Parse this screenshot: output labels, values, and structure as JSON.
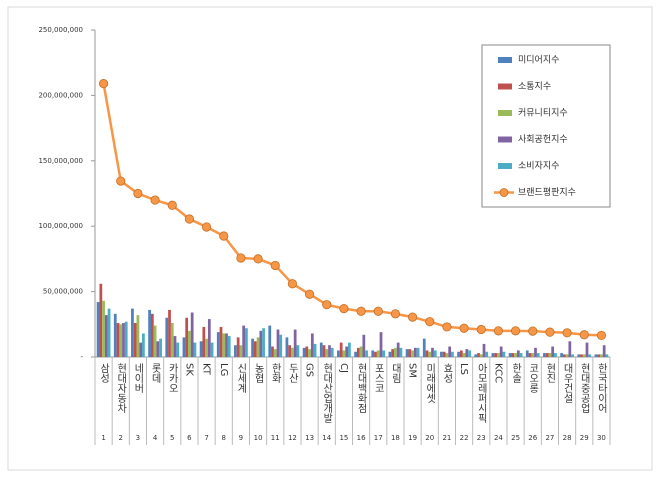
{
  "chart_data": {
    "type": "bar",
    "categories": [
      "삼성",
      "현대자동차",
      "네이버",
      "롯데",
      "카카오",
      "SK",
      "KT",
      "LG",
      "신세계",
      "농협",
      "한화",
      "두산",
      "GS",
      "현대산업개발",
      "CJ",
      "현대백화점",
      "포스코",
      "대림",
      "SM",
      "미래에셋",
      "효성",
      "LS",
      "아모레퍼시픽",
      "KCC",
      "한솔",
      "코오롱",
      "현진",
      "대우건설",
      "현대중공업",
      "한국타이어"
    ],
    "ranks": [
      1,
      2,
      3,
      4,
      5,
      6,
      7,
      8,
      9,
      10,
      11,
      12,
      13,
      14,
      15,
      16,
      17,
      18,
      19,
      20,
      21,
      22,
      23,
      24,
      25,
      26,
      27,
      28,
      29,
      30
    ],
    "series": [
      {
        "name": "미디어지수",
        "type": "bar",
        "color": "#4f81bd",
        "values": [
          42000000,
          33000000,
          37000000,
          36000000,
          30000000,
          15000000,
          12000000,
          19000000,
          9000000,
          14000000,
          24000000,
          15000000,
          7000000,
          11000000,
          5000000,
          4000000,
          5000000,
          4000000,
          6000000,
          14000000,
          4000000,
          4000000,
          2000000,
          3000000,
          3000000,
          5000000,
          3000000,
          3000000,
          2000000,
          2000000
        ]
      },
      {
        "name": "소통지수",
        "type": "bar",
        "color": "#c0504d",
        "values": [
          56000000,
          26000000,
          26000000,
          33000000,
          36000000,
          30000000,
          23000000,
          23000000,
          15000000,
          12000000,
          8000000,
          9000000,
          8000000,
          9000000,
          11000000,
          7000000,
          4000000,
          6000000,
          6000000,
          5000000,
          4000000,
          5000000,
          3000000,
          3000000,
          3000000,
          3000000,
          3000000,
          2000000,
          2000000,
          2000000
        ]
      },
      {
        "name": "커뮤니티지수",
        "type": "bar",
        "color": "#9bbb59",
        "values": [
          43000000,
          25000000,
          32000000,
          24000000,
          26000000,
          20000000,
          14000000,
          18000000,
          9000000,
          15000000,
          6000000,
          7000000,
          6000000,
          6000000,
          5000000,
          8000000,
          5000000,
          7000000,
          5000000,
          4000000,
          3000000,
          3000000,
          2000000,
          3000000,
          3000000,
          3000000,
          3000000,
          2000000,
          2000000,
          2000000
        ]
      },
      {
        "name": "사회공헌지수",
        "type": "bar",
        "color": "#8064a2",
        "values": [
          32000000,
          26000000,
          11000000,
          12000000,
          16000000,
          34000000,
          29000000,
          18000000,
          24000000,
          20000000,
          21000000,
          21000000,
          18000000,
          9000000,
          8000000,
          17000000,
          19000000,
          11000000,
          7000000,
          7000000,
          8000000,
          6000000,
          10000000,
          8000000,
          5000000,
          7000000,
          8000000,
          12000000,
          11000000,
          9000000
        ]
      },
      {
        "name": "소비자지수",
        "type": "bar",
        "color": "#4bacc6",
        "values": [
          37000000,
          27000000,
          18000000,
          14000000,
          11000000,
          11000000,
          11000000,
          16000000,
          22000000,
          22000000,
          17000000,
          9000000,
          10000000,
          7000000,
          11000000,
          5000000,
          5000000,
          7000000,
          7000000,
          5000000,
          4000000,
          5000000,
          4000000,
          4000000,
          3000000,
          3000000,
          3000000,
          2000000,
          2000000,
          2000000
        ]
      },
      {
        "name": "브랜드평판지수",
        "type": "line",
        "color": "#f79646",
        "values": [
          209000000,
          134500000,
          125000000,
          120000000,
          116000000,
          105500000,
          99400000,
          92500000,
          75700000,
          75000000,
          70000000,
          56000000,
          48000000,
          40000000,
          37000000,
          35000000,
          35000000,
          33000000,
          30500000,
          27000000,
          23000000,
          22000000,
          21000000,
          20000000,
          20000000,
          19800000,
          19000000,
          18500000,
          17000000,
          16500000
        ]
      }
    ],
    "ylim": [
      0,
      250000000
    ],
    "yticks": [
      {
        "value": 0,
        "label": "-"
      },
      {
        "value": 50000000,
        "label": "50,000,000"
      },
      {
        "value": 100000000,
        "label": "100,000,000"
      },
      {
        "value": 150000000,
        "label": "150,000,000"
      },
      {
        "value": 200000000,
        "label": "200,000,000"
      },
      {
        "value": 250000000,
        "label": "250,000,000"
      }
    ],
    "grid": false,
    "legend": "top-right"
  }
}
